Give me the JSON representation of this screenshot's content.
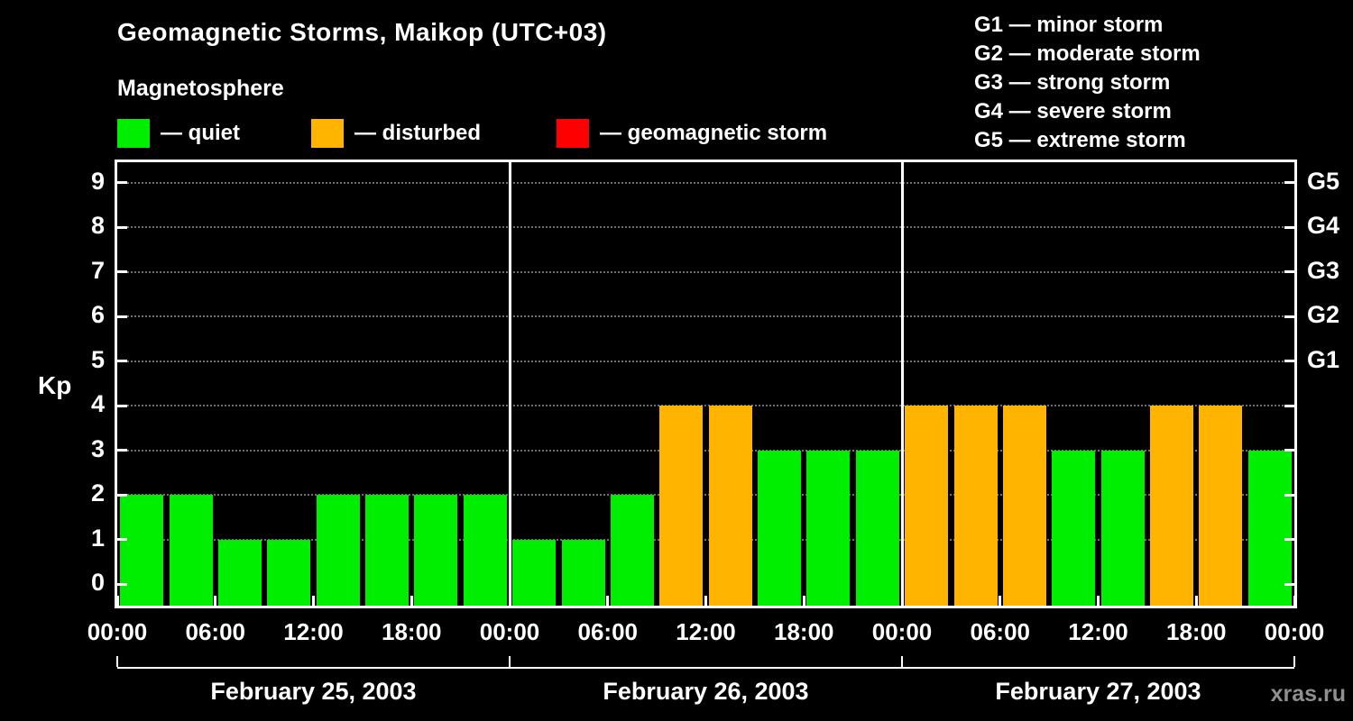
{
  "title": "Geomagnetic Storms, Maikop (UTC+03)",
  "subtitle": "Magnetosphere",
  "legend": {
    "quiet": {
      "label": "— quiet",
      "color": "#00ee00"
    },
    "disturbed": {
      "label": "— disturbed",
      "color": "#ffb400"
    },
    "storm": {
      "label": "— geomagnetic storm",
      "color": "#ff0000"
    }
  },
  "storm_scale": [
    {
      "code": "G1",
      "label": "G1 — minor storm",
      "kp": 5
    },
    {
      "code": "G2",
      "label": "G2 — moderate storm",
      "kp": 6
    },
    {
      "code": "G3",
      "label": "G3 — strong storm",
      "kp": 7
    },
    {
      "code": "G4",
      "label": "G4 — severe storm",
      "kp": 8
    },
    {
      "code": "G5",
      "label": "G5 — extreme storm",
      "kp": 9
    }
  ],
  "watermark": "xras.ru",
  "chart_data": {
    "type": "bar",
    "title": "Geomagnetic Storms, Maikop (UTC+03)",
    "ylabel": "Kp",
    "ylim": [
      0,
      9.5
    ],
    "yticks": [
      0,
      1,
      2,
      3,
      4,
      5,
      6,
      7,
      8,
      9
    ],
    "grid": "dotted horizontal at each Kp level",
    "bar_interval_hours": 3,
    "right_axis_labels": [
      {
        "kp": 5,
        "label": "G1"
      },
      {
        "kp": 6,
        "label": "G2"
      },
      {
        "kp": 7,
        "label": "G3"
      },
      {
        "kp": 8,
        "label": "G4"
      },
      {
        "kp": 9,
        "label": "G5"
      }
    ],
    "x_tick_labels": [
      "00:00",
      "06:00",
      "12:00",
      "18:00",
      "00:00",
      "06:00",
      "12:00",
      "18:00",
      "00:00",
      "06:00",
      "12:00",
      "18:00",
      "00:00"
    ],
    "colors": {
      "quiet": "#00ee00",
      "disturbed": "#ffb400",
      "storm": "#ff0000"
    },
    "days": [
      {
        "date": "February 25, 2003",
        "values": [
          2,
          2,
          1,
          1,
          2,
          2,
          2,
          2
        ],
        "statuses": [
          "quiet",
          "quiet",
          "quiet",
          "quiet",
          "quiet",
          "quiet",
          "quiet",
          "quiet"
        ]
      },
      {
        "date": "February 26, 2003",
        "values": [
          1,
          1,
          2,
          4,
          4,
          3,
          3,
          3
        ],
        "statuses": [
          "quiet",
          "quiet",
          "quiet",
          "disturbed",
          "disturbed",
          "quiet",
          "quiet",
          "quiet"
        ]
      },
      {
        "date": "February 27, 2003",
        "values": [
          4,
          4,
          4,
          3,
          3,
          4,
          4,
          3
        ],
        "statuses": [
          "disturbed",
          "disturbed",
          "disturbed",
          "quiet",
          "quiet",
          "disturbed",
          "disturbed",
          "quiet"
        ]
      }
    ]
  }
}
